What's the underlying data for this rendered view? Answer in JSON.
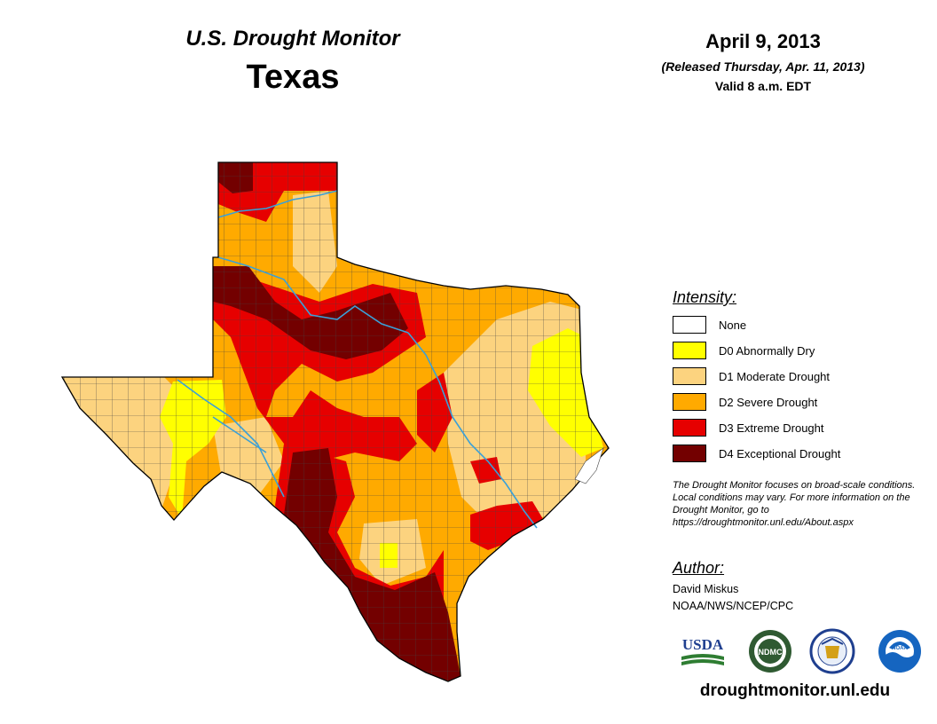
{
  "header": {
    "title": "U.S. Drought Monitor",
    "state": "Texas",
    "date": "April 9, 2013",
    "released": "(Released Thursday, Apr. 11, 2013)",
    "valid": "Valid 8 a.m. EDT"
  },
  "legend": {
    "heading": "Intensity:",
    "items": [
      {
        "label": "None",
        "color": "#ffffff"
      },
      {
        "label": "D0 Abnormally Dry",
        "color": "#ffff00"
      },
      {
        "label": "D1 Moderate Drought",
        "color": "#fcd37f"
      },
      {
        "label": "D2 Severe Drought",
        "color": "#ffaa00"
      },
      {
        "label": "D3 Extreme Drought",
        "color": "#e60000"
      },
      {
        "label": "D4 Exceptional Drought",
        "color": "#730000"
      }
    ]
  },
  "note": "The Drought Monitor focuses on broad-scale conditions. Local conditions may vary. For more information on the Drought Monitor, go to https://droughtmonitor.unl.edu/About.aspx",
  "author": {
    "heading": "Author:",
    "name": "David Miskus",
    "org": "NOAA/NWS/NCEP/CPC"
  },
  "logos": {
    "usda": "USDA",
    "ndmc": "NDMC",
    "noaa": "NOAA"
  },
  "website": "droughtmonitor.unl.edu",
  "colors": {
    "river": "#3aa0d8",
    "county_line": "#444444",
    "usda_blue": "#1f3f8f",
    "usda_green": "#2e7d32",
    "ndmc_green": "#2f5a32",
    "noaa_blue": "#1565c0"
  }
}
